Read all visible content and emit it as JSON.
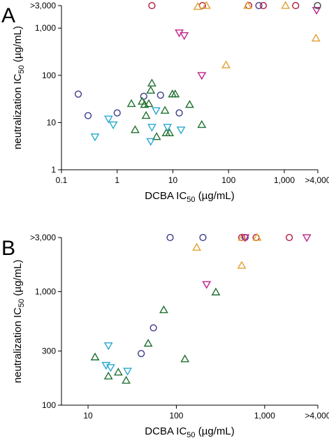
{
  "colors": {
    "navy": "#3a3a8a",
    "crimson": "#b0183c",
    "orange": "#e0a030",
    "magenta": "#c0208a",
    "green": "#207030",
    "cyan": "#28a8d0",
    "gray": "#555555"
  },
  "chart_data": [
    {
      "type": "scatter",
      "panel": "A",
      "xlabel": {
        "main": "DCBA IC",
        "sub": "50",
        "unit": " (µg/mL)"
      },
      "ylabel": {
        "main": "neutralization IC",
        "sub": "50",
        "unit": " (µg/mL)"
      },
      "xscale": "log",
      "yscale": "log",
      "xlim": [
        0.1,
        4000
      ],
      "ylim": [
        1,
        3000
      ],
      "xticks": [
        {
          "v": 0.1,
          "label": "0.1"
        },
        {
          "v": 1,
          "label": "1"
        },
        {
          "v": 10,
          "label": "10"
        },
        {
          "v": 100,
          "label": "100"
        },
        {
          "v": 1000,
          "label": "1,000"
        },
        {
          "v": 4000,
          "label": ">4,000"
        }
      ],
      "yticks": [
        {
          "v": 1,
          "label": "1"
        },
        {
          "v": 10,
          "label": "10"
        },
        {
          "v": 100,
          "label": "100"
        },
        {
          "v": 1000,
          "label": "1,000"
        },
        {
          "v": 3000,
          "label": ">3,000"
        }
      ],
      "grid": false,
      "series": [
        {
          "marker": "circle",
          "color": "navy",
          "points": [
            [
              0.2,
              40
            ],
            [
              0.3,
              14
            ],
            [
              1.0,
              16
            ],
            [
              3.0,
              36
            ],
            [
              6.0,
              38
            ],
            [
              13,
              16
            ],
            [
              350,
              3000
            ]
          ]
        },
        {
          "marker": "circle",
          "color": "crimson",
          "points": [
            [
              4.2,
              3000
            ],
            [
              34,
              3000
            ],
            [
              230,
              3000
            ],
            [
              420,
              3000
            ],
            [
              1600,
              3000
            ]
          ]
        },
        {
          "marker": "triangle-up",
          "color": "orange",
          "points": [
            [
              28,
              2850
            ],
            [
              40,
              3000
            ],
            [
              220,
              3000
            ],
            [
              1050,
              3000
            ],
            [
              90,
              165
            ],
            [
              3700,
              610
            ]
          ]
        },
        {
          "marker": "triangle-down",
          "color": "magenta",
          "points": [
            [
              13,
              800
            ],
            [
              16,
              700
            ],
            [
              33,
              100
            ],
            [
              3800,
              2400
            ]
          ]
        },
        {
          "marker": "triangle-up",
          "color": "green",
          "points": [
            [
              1.8,
              25
            ],
            [
              2.1,
              7
            ],
            [
              2.8,
              28
            ],
            [
              3.1,
              24
            ],
            [
              3.3,
              14
            ],
            [
              3.7,
              25
            ],
            [
              4.0,
              48
            ],
            [
              4.2,
              68
            ],
            [
              5.1,
              5
            ],
            [
              7.2,
              18
            ],
            [
              7.6,
              6
            ],
            [
              8.7,
              6
            ],
            [
              9.8,
              40
            ],
            [
              11,
              40
            ],
            [
              20,
              24
            ],
            [
              33,
              9
            ]
          ]
        },
        {
          "marker": "triangle-down",
          "color": "cyan",
          "points": [
            [
              0.4,
              5
            ],
            [
              0.7,
              12
            ],
            [
              0.85,
              9
            ],
            [
              4.0,
              4
            ],
            [
              4.2,
              8
            ],
            [
              5.0,
              18
            ],
            [
              8.0,
              8
            ],
            [
              14,
              7
            ]
          ]
        },
        {
          "marker": "circle",
          "color": "gray",
          "points": [
            [
              3950,
              3000
            ],
            [
              3950,
              3000
            ]
          ]
        }
      ]
    },
    {
      "type": "scatter",
      "panel": "B",
      "xlabel": {
        "main": "DCBA IC",
        "sub": "50",
        "unit": " (µg/mL)"
      },
      "ylabel": {
        "main": "neutralization IC",
        "sub": "50",
        "unit": " (µg/mL)"
      },
      "xscale": "log",
      "yscale": "log",
      "xlim": [
        5,
        4000
      ],
      "ylim": [
        100,
        3000
      ],
      "xticks": [
        {
          "v": 10,
          "label": "10"
        },
        {
          "v": 100,
          "label": "100"
        },
        {
          "v": 1000,
          "label": "1,000"
        },
        {
          "v": 4000,
          "label": ">4,000"
        }
      ],
      "yticks": [
        {
          "v": 100,
          "label": "100"
        },
        {
          "v": 300,
          "label": "300"
        },
        {
          "v": 1000,
          "label": "1,000"
        },
        {
          "v": 3000,
          "label": ">3,000"
        }
      ],
      "grid": false,
      "series": [
        {
          "marker": "circle",
          "color": "navy",
          "points": [
            [
              40,
              285
            ],
            [
              55,
              480
            ],
            [
              85,
              3000
            ],
            [
              200,
              3000
            ],
            [
              600,
              3000
            ]
          ]
        },
        {
          "marker": "circle",
          "color": "crimson",
          "points": [
            [
              550,
              3000
            ],
            [
              800,
              3000
            ],
            [
              1900,
              3000
            ]
          ]
        },
        {
          "marker": "triangle-up",
          "color": "orange",
          "points": [
            [
              170,
              2450
            ],
            [
              550,
              1700
            ],
            [
              560,
              3000
            ],
            [
              820,
              3000
            ]
          ]
        },
        {
          "marker": "triangle-down",
          "color": "magenta",
          "points": [
            [
              220,
              1160
            ],
            [
              600,
              3000
            ],
            [
              3000,
              3000
            ]
          ]
        },
        {
          "marker": "triangle-up",
          "color": "green",
          "points": [
            [
              12,
              265
            ],
            [
              17,
              180
            ],
            [
              22,
              195
            ],
            [
              27,
              165
            ],
            [
              48,
              350
            ],
            [
              72,
              690
            ],
            [
              125,
              255
            ],
            [
              280,
              990
            ]
          ]
        },
        {
          "marker": "triangle-down",
          "color": "cyan",
          "points": [
            [
              16,
              225
            ],
            [
              17,
              335
            ],
            [
              18,
              215
            ],
            [
              28,
              200
            ]
          ]
        }
      ]
    }
  ],
  "panels": [
    {
      "letter": "A"
    },
    {
      "letter": "B"
    }
  ]
}
